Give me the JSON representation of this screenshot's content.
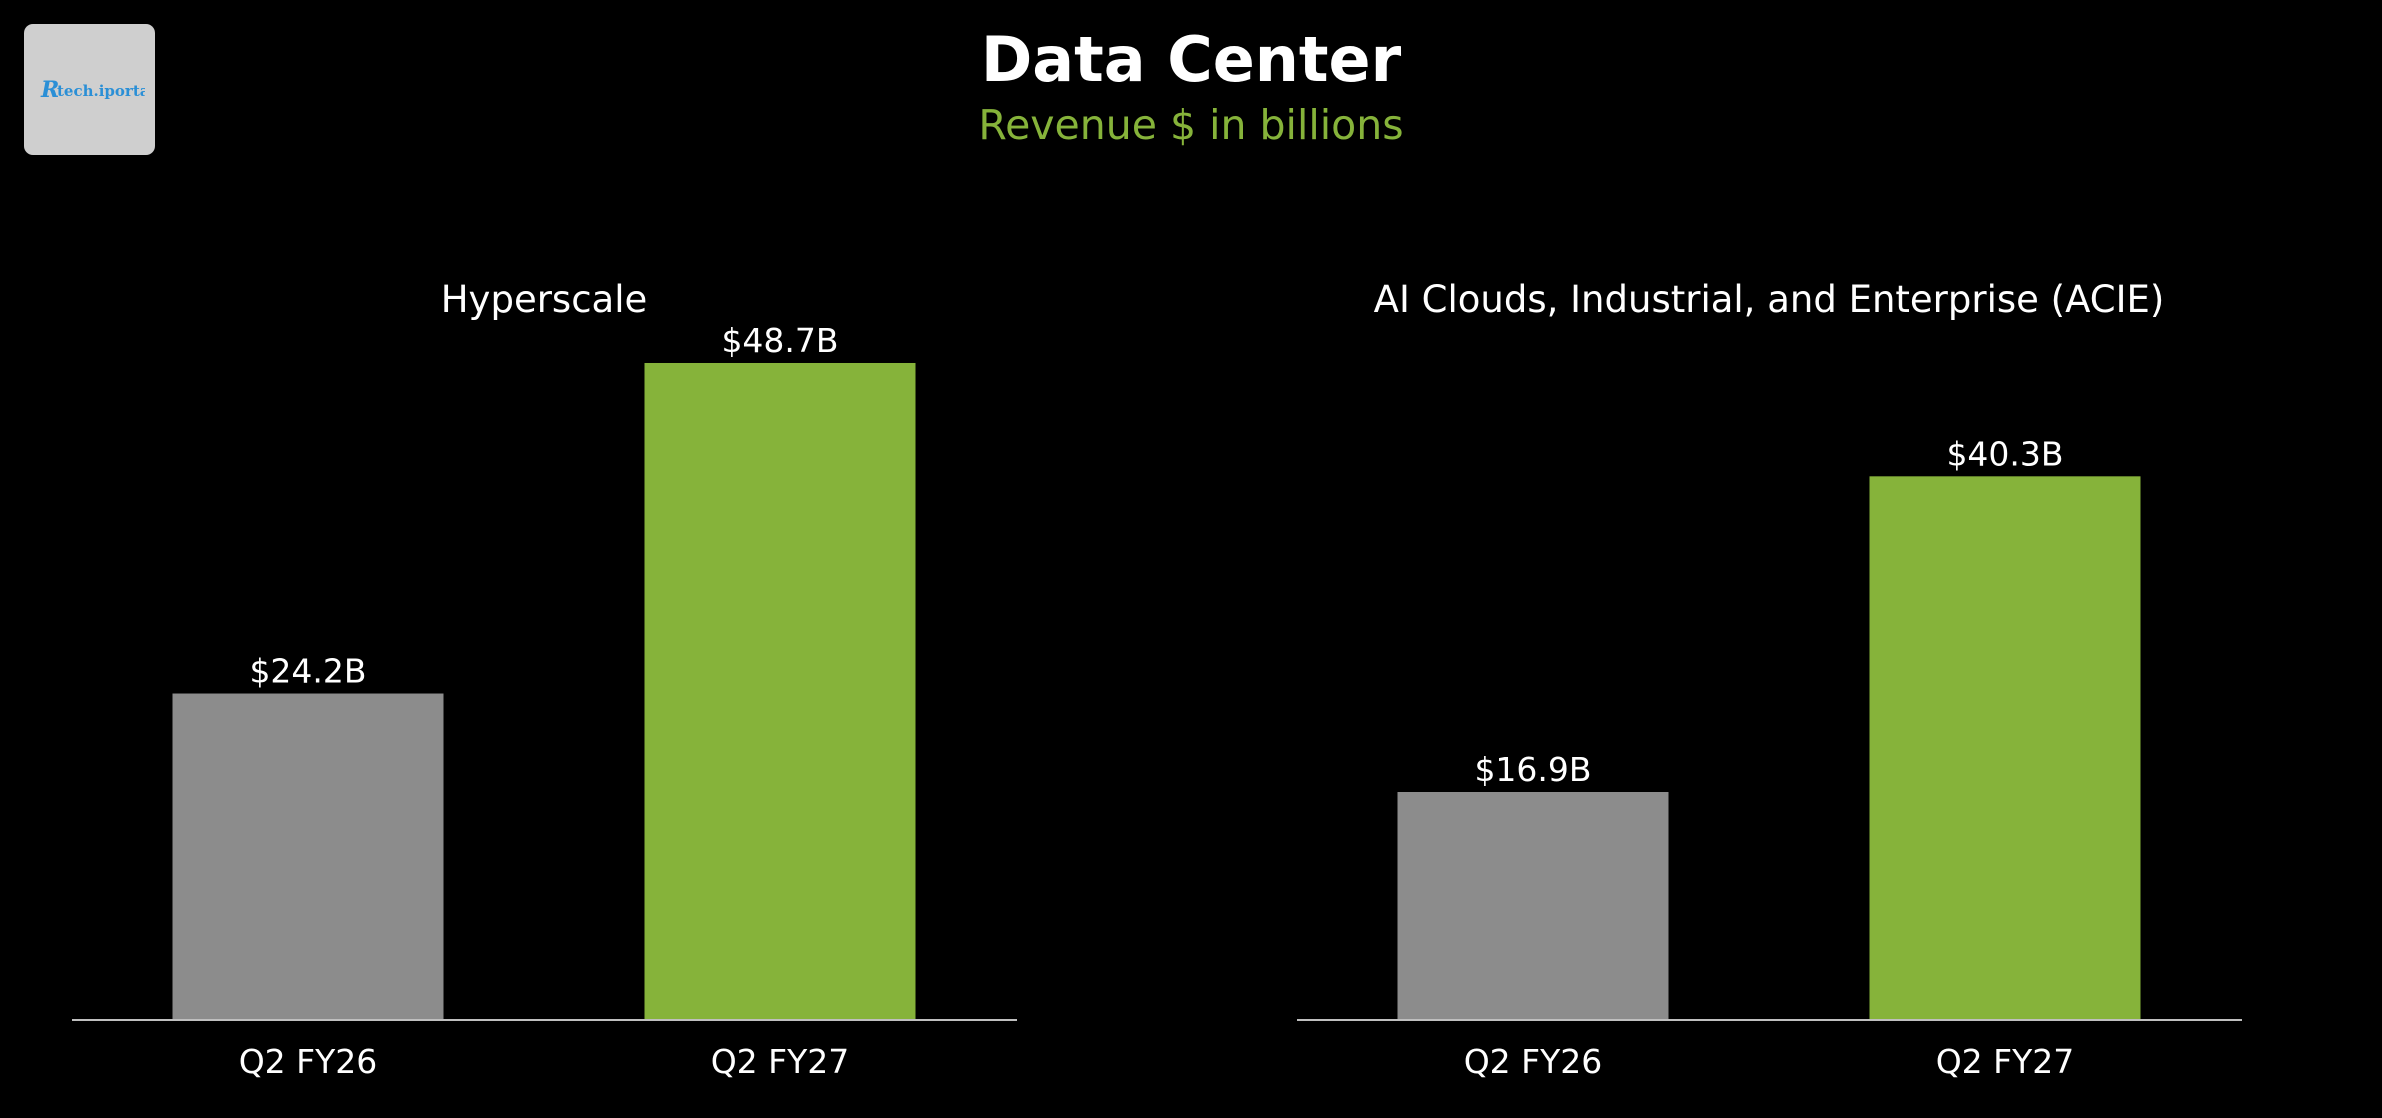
{
  "header": {
    "title": "Data Center",
    "subtitle": "Revenue $ in billions"
  },
  "logo": {
    "text": "tech.iportal",
    "mark": "R"
  },
  "colors": {
    "background": "#000000",
    "prior_bar": "#8c8c8c",
    "current_bar": "#86b33a",
    "accent_text": "#86b33a",
    "text": "#ffffff",
    "baseline": "#bfbfbf",
    "logo_text": "#2a8fd6"
  },
  "chart_data": [
    {
      "type": "bar",
      "title": "Hyperscale",
      "categories": [
        "Q2 FY26",
        "Q2 FY27"
      ],
      "values": [
        24.2,
        48.7
      ],
      "data_labels": [
        "$24.2B",
        "$48.7B"
      ],
      "unit": "$B",
      "ylim": [
        0,
        55
      ],
      "grid": false,
      "legend": "none"
    },
    {
      "type": "bar",
      "title": "AI Clouds, Industrial, and Enterprise (ACIE)",
      "categories": [
        "Q2 FY26",
        "Q2 FY27"
      ],
      "values": [
        16.9,
        40.3
      ],
      "data_labels": [
        "$16.9B",
        "$40.3B"
      ],
      "unit": "$B",
      "ylim": [
        0,
        55
      ],
      "grid": false,
      "legend": "none"
    }
  ]
}
